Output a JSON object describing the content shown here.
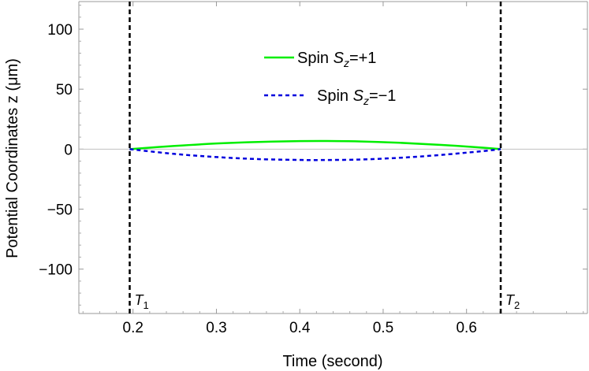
{
  "chart_data": {
    "type": "line",
    "xlabel": "Time (second)",
    "ylabel": "Potential Coordinates z (μm)",
    "xlim": [
      0.135,
      0.745
    ],
    "ylim": [
      -137,
      123
    ],
    "x_ticks": [
      0.2,
      0.3,
      0.4,
      0.5,
      0.6
    ],
    "x_tick_labels": [
      "0.2",
      "0.3",
      "0.4",
      "0.5",
      "0.6"
    ],
    "y_ticks": [
      100,
      50,
      0,
      -50,
      -100
    ],
    "y_tick_labels": [
      "100",
      "50",
      "0",
      "−50",
      "−100"
    ],
    "zero_line": true,
    "legend": {
      "placement": "top-center"
    },
    "series": [
      {
        "name": "Spin Sz=+1",
        "legend_prefix": "Spin ",
        "legend_symbol": "S",
        "legend_sub": "z",
        "legend_suffix": "=+1",
        "color": "#00ee00",
        "dash": "solid",
        "x": [
          0.196,
          0.25,
          0.3,
          0.35,
          0.4,
          0.43,
          0.47,
          0.52,
          0.57,
          0.62,
          0.641
        ],
        "y": [
          0,
          2.7,
          4.7,
          6.0,
          6.7,
          6.8,
          6.5,
          5.3,
          3.5,
          1.2,
          0
        ]
      },
      {
        "name": "Spin Sz=−1",
        "legend_prefix": "Spin ",
        "legend_symbol": "S",
        "legend_sub": "z",
        "legend_suffix": "=−1",
        "color": "#0000dd",
        "dash": "dashed",
        "x": [
          0.196,
          0.25,
          0.3,
          0.35,
          0.4,
          0.42,
          0.47,
          0.52,
          0.57,
          0.62,
          0.641
        ],
        "y": [
          0,
          -4.0,
          -6.6,
          -8.3,
          -9.0,
          -9.1,
          -8.7,
          -7.2,
          -4.8,
          -1.6,
          0
        ]
      }
    ],
    "vertical_markers": [
      {
        "x": 0.196,
        "label": "T",
        "sub": "1",
        "color": "#000000"
      },
      {
        "x": 0.641,
        "label": "T",
        "sub": "2",
        "color": "#000000"
      }
    ]
  }
}
